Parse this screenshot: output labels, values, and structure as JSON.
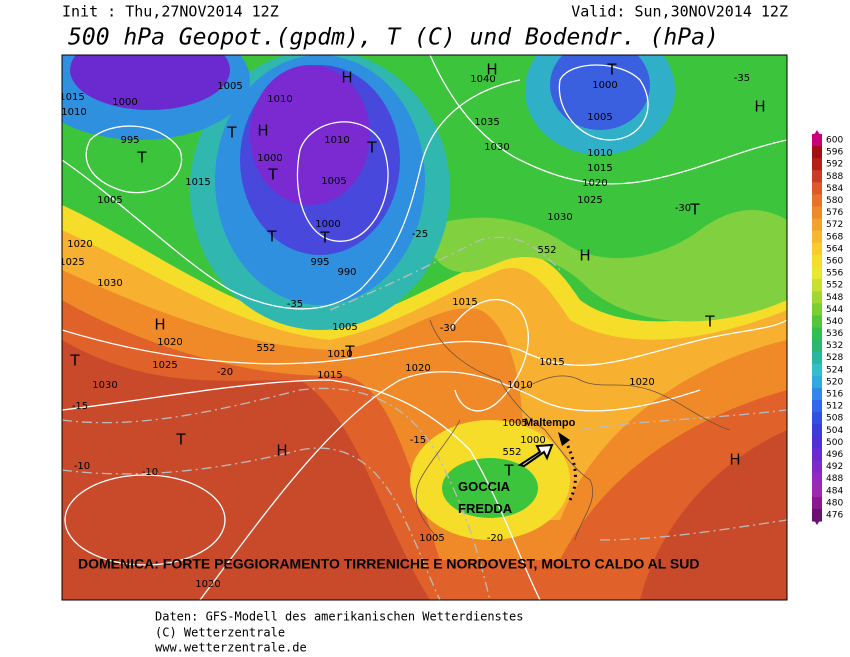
{
  "header": {
    "init": "Init : Thu,27NOV2014 12Z",
    "valid": "Valid: Sun,30NOV2014 12Z",
    "title": "500 hPa Geopot.(gpdm), T (C) und Bodendr. (hPa)"
  },
  "colorbar": {
    "labels": [
      600,
      596,
      592,
      588,
      584,
      580,
      576,
      572,
      568,
      564,
      560,
      556,
      552,
      548,
      544,
      540,
      536,
      532,
      528,
      524,
      520,
      516,
      512,
      508,
      504,
      500,
      496,
      492,
      488,
      484,
      480,
      476
    ],
    "colors": [
      "#c8007a",
      "#a01010",
      "#b42018",
      "#c83c28",
      "#dc5a2a",
      "#e8722a",
      "#f08a28",
      "#f5a22c",
      "#f7b830",
      "#f8cc2a",
      "#f5dd2a",
      "#e8e830",
      "#c8e030",
      "#a0d830",
      "#7ad030",
      "#50c838",
      "#30c050",
      "#28b870",
      "#28b8a0",
      "#30c0c8",
      "#30a8e0",
      "#3088e8",
      "#3068e8",
      "#3050e0",
      "#3c3cd8",
      "#5030d0",
      "#6a2ad0",
      "#8028c8",
      "#9428c0",
      "#a028b0",
      "#8c1890",
      "#6a1070"
    ]
  },
  "map": {
    "labels": [
      "1015",
      "1010",
      "1000",
      "995",
      "1005",
      "1010",
      "1015",
      "1005",
      "1000",
      "1010",
      "1005",
      "1000",
      "995",
      "990",
      "1040",
      "1035",
      "1030",
      "1000",
      "1005",
      "1010",
      "1015",
      "1020",
      "1025",
      "1030",
      "1020",
      "1025",
      "1030",
      "1015",
      "1020",
      "1025",
      "1030",
      "1005",
      "1010",
      "1015",
      "1020",
      "1010",
      "1015",
      "1020",
      "1005",
      "1000",
      "1005",
      "1020",
      "-35",
      "-30",
      "-25",
      "-20",
      "-15",
      "-10",
      "-10",
      "-15",
      "-20",
      "-30",
      "-35",
      "552",
      "552",
      "552"
    ],
    "marks": [
      "T",
      "T",
      "H",
      "T",
      "T",
      "T",
      "T",
      "H",
      "T",
      "T",
      "H",
      "T",
      "H",
      "T",
      "H",
      "H",
      "T",
      "T",
      "H",
      "T",
      "H"
    ],
    "annotation_maltempo": "Maltempo",
    "annotation_goccia": "GOCCIA\nFREDDA",
    "annotation_banner": "DOMENICA: FORTE PEGGIORAMENTO TIRRENICHE E NORDOVEST, MOLTO CALDO AL SUD"
  },
  "footer": {
    "line1": "Daten: GFS-Modell des amerikanischen Wetterdienstes",
    "line2": "(C) Wetterzentrale",
    "line3": "www.wetterzentrale.de"
  }
}
